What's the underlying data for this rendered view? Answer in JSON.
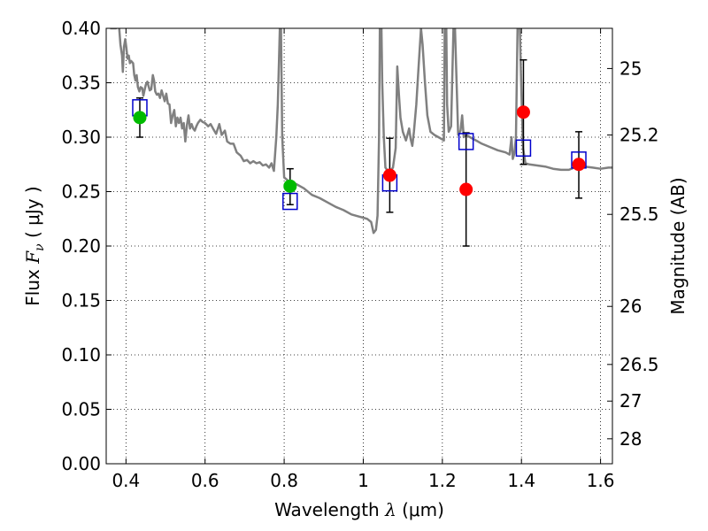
{
  "chart_data": {
    "type": "scatter",
    "xlabel": {
      "pre": "Wavelength ",
      "sym": "λ",
      "unit": " (μm)"
    },
    "ylabel": {
      "pre": "Flux ",
      "sym": "F",
      "sub": "ν",
      "unit": " ( μJy )"
    },
    "y2label": "Magnitude (AB)",
    "xlim": [
      0.35,
      1.63
    ],
    "ylim": [
      0.0,
      0.4
    ],
    "grid": true,
    "xticks": [
      {
        "v": 0.4,
        "label": "0.4"
      },
      {
        "v": 0.6,
        "label": "0.6"
      },
      {
        "v": 0.8,
        "label": "0.8"
      },
      {
        "v": 1.0,
        "label": "1"
      },
      {
        "v": 1.2,
        "label": "1.2"
      },
      {
        "v": 1.4,
        "label": "1.4"
      },
      {
        "v": 1.6,
        "label": "1.6"
      }
    ],
    "yticks": [
      {
        "v": 0.0,
        "label": "0.00"
      },
      {
        "v": 0.05,
        "label": "0.05"
      },
      {
        "v": 0.1,
        "label": "0.10"
      },
      {
        "v": 0.15,
        "label": "0.15"
      },
      {
        "v": 0.2,
        "label": "0.20"
      },
      {
        "v": 0.25,
        "label": "0.25"
      },
      {
        "v": 0.3,
        "label": "0.30"
      },
      {
        "v": 0.35,
        "label": "0.35"
      },
      {
        "v": 0.4,
        "label": "0.40"
      }
    ],
    "mag_ticks": [
      {
        "mag": 25,
        "label": "25"
      },
      {
        "mag": 25.2,
        "label": "25.2"
      },
      {
        "mag": 25.5,
        "label": "25.5"
      },
      {
        "mag": 26,
        "label": "26"
      },
      {
        "mag": 26.5,
        "label": "26.5"
      },
      {
        "mag": 27,
        "label": "27"
      },
      {
        "mag": 28,
        "label": "28"
      }
    ],
    "model_spectrum": {
      "color": "#808080",
      "points": [
        [
          0.36,
          0.4
        ],
        [
          0.375,
          0.4
        ],
        [
          0.378,
          0.41
        ],
        [
          0.383,
          0.4
        ],
        [
          0.386,
          0.385
        ],
        [
          0.39,
          0.375
        ],
        [
          0.392,
          0.36
        ],
        [
          0.395,
          0.383
        ],
        [
          0.398,
          0.39
        ],
        [
          0.401,
          0.382
        ],
        [
          0.404,
          0.372
        ],
        [
          0.407,
          0.375
        ],
        [
          0.41,
          0.368
        ],
        [
          0.413,
          0.37
        ],
        [
          0.418,
          0.368
        ],
        [
          0.421,
          0.357
        ],
        [
          0.424,
          0.352
        ],
        [
          0.427,
          0.357
        ],
        [
          0.43,
          0.346
        ],
        [
          0.434,
          0.342
        ],
        [
          0.437,
          0.346
        ],
        [
          0.441,
          0.345
        ],
        [
          0.444,
          0.338
        ],
        [
          0.447,
          0.343
        ],
        [
          0.45,
          0.348
        ],
        [
          0.454,
          0.351
        ],
        [
          0.457,
          0.347
        ],
        [
          0.46,
          0.343
        ],
        [
          0.464,
          0.344
        ],
        [
          0.468,
          0.357
        ],
        [
          0.471,
          0.352
        ],
        [
          0.474,
          0.342
        ],
        [
          0.478,
          0.339
        ],
        [
          0.482,
          0.34
        ],
        [
          0.486,
          0.336
        ],
        [
          0.49,
          0.343
        ],
        [
          0.494,
          0.338
        ],
        [
          0.498,
          0.333
        ],
        [
          0.502,
          0.34
        ],
        [
          0.506,
          0.331
        ],
        [
          0.51,
          0.33
        ],
        [
          0.514,
          0.313
        ],
        [
          0.518,
          0.32
        ],
        [
          0.522,
          0.325
        ],
        [
          0.526,
          0.31
        ],
        [
          0.53,
          0.318
        ],
        [
          0.534,
          0.313
        ],
        [
          0.538,
          0.318
        ],
        [
          0.542,
          0.308
        ],
        [
          0.546,
          0.313
        ],
        [
          0.55,
          0.296
        ],
        [
          0.554,
          0.311
        ],
        [
          0.558,
          0.32
        ],
        [
          0.562,
          0.308
        ],
        [
          0.566,
          0.312
        ],
        [
          0.57,
          0.308
        ],
        [
          0.574,
          0.306
        ],
        [
          0.578,
          0.31
        ],
        [
          0.582,
          0.313
        ],
        [
          0.588,
          0.316
        ],
        [
          0.594,
          0.314
        ],
        [
          0.6,
          0.313
        ],
        [
          0.608,
          0.31
        ],
        [
          0.614,
          0.312
        ],
        [
          0.62,
          0.308
        ],
        [
          0.628,
          0.303
        ],
        [
          0.636,
          0.312
        ],
        [
          0.642,
          0.302
        ],
        [
          0.65,
          0.306
        ],
        [
          0.656,
          0.296
        ],
        [
          0.664,
          0.294
        ],
        [
          0.672,
          0.294
        ],
        [
          0.68,
          0.286
        ],
        [
          0.69,
          0.283
        ],
        [
          0.698,
          0.278
        ],
        [
          0.706,
          0.279
        ],
        [
          0.714,
          0.276
        ],
        [
          0.722,
          0.278
        ],
        [
          0.73,
          0.276
        ],
        [
          0.738,
          0.277
        ],
        [
          0.746,
          0.274
        ],
        [
          0.754,
          0.275
        ],
        [
          0.762,
          0.272
        ],
        [
          0.768,
          0.276
        ],
        [
          0.774,
          0.269
        ],
        [
          0.78,
          0.3
        ],
        [
          0.784,
          0.33
        ],
        [
          0.787,
          0.372
        ],
        [
          0.789,
          0.4
        ],
        [
          0.792,
          0.4
        ],
        [
          0.795,
          0.3
        ],
        [
          0.8,
          0.263
        ],
        [
          0.81,
          0.26
        ],
        [
          0.83,
          0.257
        ],
        [
          0.85,
          0.253
        ],
        [
          0.87,
          0.247
        ],
        [
          0.89,
          0.244
        ],
        [
          0.91,
          0.24
        ],
        [
          0.93,
          0.236
        ],
        [
          0.95,
          0.233
        ],
        [
          0.97,
          0.229
        ],
        [
          0.99,
          0.227
        ],
        [
          1.0,
          0.226
        ],
        [
          1.01,
          0.225
        ],
        [
          1.02,
          0.222
        ],
        [
          1.026,
          0.212
        ],
        [
          1.032,
          0.215
        ],
        [
          1.036,
          0.228
        ],
        [
          1.04,
          0.3
        ],
        [
          1.042,
          0.4
        ],
        [
          1.046,
          0.4
        ],
        [
          1.048,
          0.35
        ],
        [
          1.052,
          0.3
        ],
        [
          1.056,
          0.272
        ],
        [
          1.06,
          0.27
        ],
        [
          1.068,
          0.269
        ],
        [
          1.075,
          0.272
        ],
        [
          1.082,
          0.29
        ],
        [
          1.086,
          0.365
        ],
        [
          1.09,
          0.34
        ],
        [
          1.094,
          0.318
        ],
        [
          1.1,
          0.305
        ],
        [
          1.108,
          0.297
        ],
        [
          1.116,
          0.308
        ],
        [
          1.12,
          0.298
        ],
        [
          1.124,
          0.292
        ],
        [
          1.128,
          0.305
        ],
        [
          1.134,
          0.33
        ],
        [
          1.14,
          0.365
        ],
        [
          1.146,
          0.4
        ],
        [
          1.15,
          0.385
        ],
        [
          1.156,
          0.35
        ],
        [
          1.162,
          0.32
        ],
        [
          1.17,
          0.305
        ],
        [
          1.18,
          0.302
        ],
        [
          1.19,
          0.3
        ],
        [
          1.2,
          0.298
        ],
        [
          1.204,
          0.297
        ],
        [
          1.206,
          0.4
        ],
        [
          1.21,
          0.4
        ],
        [
          1.212,
          0.33
        ],
        [
          1.216,
          0.305
        ],
        [
          1.222,
          0.31
        ],
        [
          1.228,
          0.4
        ],
        [
          1.232,
          0.4
        ],
        [
          1.24,
          0.302
        ],
        [
          1.246,
          0.306
        ],
        [
          1.25,
          0.32
        ],
        [
          1.254,
          0.3
        ],
        [
          1.26,
          0.302
        ],
        [
          1.27,
          0.3
        ],
        [
          1.28,
          0.298
        ],
        [
          1.29,
          0.296
        ],
        [
          1.3,
          0.294
        ],
        [
          1.32,
          0.291
        ],
        [
          1.34,
          0.288
        ],
        [
          1.36,
          0.286
        ],
        [
          1.37,
          0.284
        ],
        [
          1.375,
          0.3
        ],
        [
          1.378,
          0.28
        ],
        [
          1.382,
          0.285
        ],
        [
          1.386,
          0.3
        ],
        [
          1.39,
          0.4
        ],
        [
          1.396,
          0.4
        ],
        [
          1.4,
          0.34
        ],
        [
          1.404,
          0.29
        ],
        [
          1.41,
          0.276
        ],
        [
          1.42,
          0.275
        ],
        [
          1.44,
          0.274
        ],
        [
          1.46,
          0.273
        ],
        [
          1.48,
          0.271
        ],
        [
          1.5,
          0.27
        ],
        [
          1.52,
          0.27
        ],
        [
          1.54,
          0.273
        ],
        [
          1.56,
          0.273
        ],
        [
          1.58,
          0.272
        ],
        [
          1.6,
          0.271
        ],
        [
          1.62,
          0.272
        ],
        [
          1.63,
          0.272
        ]
      ]
    },
    "model_photometry": {
      "marker": "open-square",
      "color": "#0000cc",
      "points": [
        {
          "x": 0.435,
          "y": 0.327
        },
        {
          "x": 0.815,
          "y": 0.241
        },
        {
          "x": 1.067,
          "y": 0.258
        },
        {
          "x": 1.26,
          "y": 0.296
        },
        {
          "x": 1.405,
          "y": 0.29
        },
        {
          "x": 1.545,
          "y": 0.279
        }
      ]
    },
    "observed_optical": {
      "marker": "filled-circle",
      "color": "#00bb00",
      "points": [
        {
          "x": 0.435,
          "y": 0.318,
          "ylo": 0.3,
          "yhi": 0.336
        },
        {
          "x": 0.815,
          "y": 0.255,
          "ylo": 0.238,
          "yhi": 0.271
        }
      ]
    },
    "observed_nir": {
      "marker": "filled-circle",
      "color": "#ff0000",
      "points": [
        {
          "x": 1.067,
          "y": 0.265,
          "ylo": 0.231,
          "yhi": 0.299
        },
        {
          "x": 1.26,
          "y": 0.252,
          "ylo": 0.2,
          "yhi": 0.304
        },
        {
          "x": 1.405,
          "y": 0.323,
          "ylo": 0.275,
          "yhi": 0.371
        },
        {
          "x": 1.545,
          "y": 0.275,
          "ylo": 0.244,
          "yhi": 0.305
        }
      ]
    }
  }
}
